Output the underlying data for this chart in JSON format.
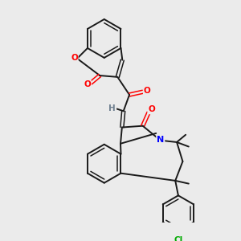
{
  "background_color": "#ebebeb",
  "bond_color": "#1a1a1a",
  "atom_colors": {
    "O": "#ff0000",
    "N": "#0000ff",
    "Cl": "#00aa00",
    "H": "#708090",
    "C": "#1a1a1a"
  },
  "figsize": [
    3.0,
    3.0
  ],
  "dpi": 100
}
